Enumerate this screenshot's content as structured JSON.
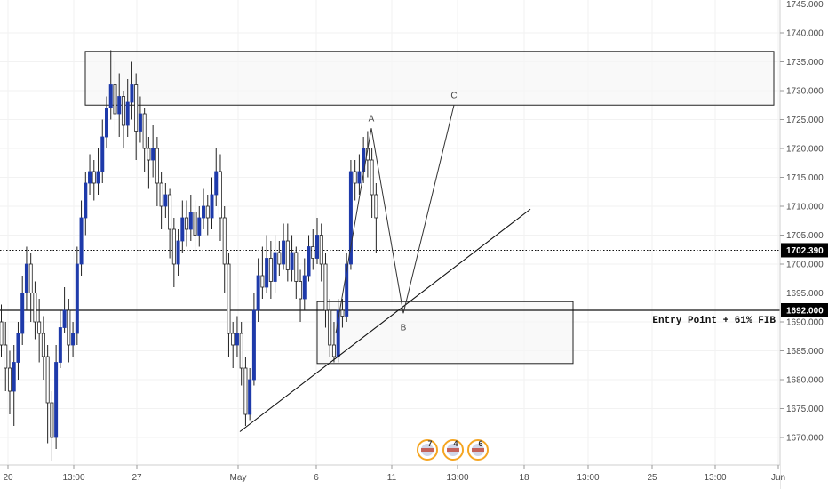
{
  "chart_data": {
    "type": "candlestick",
    "title": "",
    "colors": {
      "up": "#1e3aaa",
      "down": "#ffffff",
      "wick": "#222222",
      "grid": "#f2f2f2",
      "line": "#111111",
      "zone_fill": "#f6f6f6",
      "zone_stroke": "#222222",
      "tag_dark": "#000000",
      "badge_ring": "#f5a623"
    },
    "y_axis": {
      "range": [
        1665,
        1746
      ],
      "ticks": [
        "1670.000",
        "1675.000",
        "1680.000",
        "1685.000",
        "1690.000",
        "1695.000",
        "1700.000",
        "1705.000",
        "1710.000",
        "1715.000",
        "1720.000",
        "1725.000",
        "1730.000",
        "1735.000",
        "1740.000",
        "1745.000"
      ]
    },
    "x_axis": {
      "ticks": [
        {
          "label": "20",
          "pos": 9
        },
        {
          "label": "13:00",
          "pos": 83
        },
        {
          "label": "27",
          "pos": 154
        },
        {
          "label": "May",
          "pos": 268
        },
        {
          "label": "6",
          "pos": 356
        },
        {
          "label": "11",
          "pos": 441
        },
        {
          "label": "13:00",
          "pos": 515
        },
        {
          "label": "18",
          "pos": 590
        },
        {
          "label": "13:00",
          "pos": 662
        },
        {
          "label": "25",
          "pos": 734
        },
        {
          "label": "13:00",
          "pos": 805
        },
        {
          "label": "Jun",
          "pos": 876
        }
      ]
    },
    "candles": [
      [
        1690,
        1686,
        1693,
        1684
      ],
      [
        1686,
        1682,
        1690,
        1678
      ],
      [
        1682,
        1678,
        1685,
        1674
      ],
      [
        1678,
        1683,
        1686,
        1672
      ],
      [
        1683,
        1688,
        1690,
        1680
      ],
      [
        1688,
        1695,
        1698,
        1686
      ],
      [
        1695,
        1700,
        1703,
        1692
      ],
      [
        1700,
        1695,
        1702,
        1690
      ],
      [
        1695,
        1690,
        1697,
        1687
      ],
      [
        1690,
        1688,
        1694,
        1683
      ],
      [
        1688,
        1684,
        1691,
        1680
      ],
      [
        1684,
        1676,
        1686,
        1669
      ],
      [
        1676,
        1670,
        1678,
        1666
      ],
      [
        1670,
        1683,
        1686,
        1668
      ],
      [
        1683,
        1689,
        1692,
        1682
      ],
      [
        1689,
        1692,
        1696,
        1688
      ],
      [
        1692,
        1686,
        1694,
        1683
      ],
      [
        1686,
        1688,
        1690,
        1684
      ],
      [
        1688,
        1700,
        1703,
        1686
      ],
      [
        1700,
        1708,
        1711,
        1698
      ],
      [
        1708,
        1714,
        1716,
        1705
      ],
      [
        1714,
        1716,
        1719,
        1712
      ],
      [
        1716,
        1714,
        1718,
        1711
      ],
      [
        1714,
        1716,
        1720,
        1712
      ],
      [
        1716,
        1722,
        1725,
        1714
      ],
      [
        1722,
        1727,
        1729,
        1720
      ],
      [
        1727,
        1731,
        1737,
        1725
      ],
      [
        1731,
        1726,
        1735,
        1723
      ],
      [
        1726,
        1729,
        1733,
        1722
      ],
      [
        1729,
        1724,
        1730,
        1720
      ],
      [
        1724,
        1728,
        1732,
        1722
      ],
      [
        1728,
        1731,
        1735,
        1725
      ],
      [
        1731,
        1723,
        1733,
        1718
      ],
      [
        1723,
        1726,
        1729,
        1721
      ],
      [
        1726,
        1720,
        1727,
        1716
      ],
      [
        1720,
        1718,
        1722,
        1713
      ],
      [
        1718,
        1720,
        1724,
        1715
      ],
      [
        1720,
        1714,
        1722,
        1710
      ],
      [
        1714,
        1710,
        1716,
        1706
      ],
      [
        1710,
        1712,
        1714,
        1708
      ],
      [
        1712,
        1706,
        1713,
        1701
      ],
      [
        1706,
        1700,
        1708,
        1696
      ],
      [
        1700,
        1704,
        1706,
        1698
      ],
      [
        1704,
        1708,
        1711,
        1702
      ],
      [
        1708,
        1706,
        1711,
        1703
      ],
      [
        1706,
        1709,
        1712,
        1704
      ],
      [
        1709,
        1705,
        1711,
        1702
      ],
      [
        1705,
        1708,
        1710,
        1703
      ],
      [
        1708,
        1710,
        1713,
        1706
      ],
      [
        1710,
        1708,
        1712,
        1705
      ],
      [
        1708,
        1712,
        1715,
        1706
      ],
      [
        1712,
        1716,
        1720,
        1710
      ],
      [
        1716,
        1708,
        1719,
        1704
      ],
      [
        1708,
        1700,
        1710,
        1695
      ],
      [
        1700,
        1688,
        1702,
        1684
      ],
      [
        1688,
        1686,
        1690,
        1682
      ],
      [
        1686,
        1688,
        1691,
        1684
      ],
      [
        1688,
        1682,
        1690,
        1679
      ],
      [
        1682,
        1674,
        1684,
        1672
      ],
      [
        1674,
        1680,
        1682,
        1673
      ],
      [
        1680,
        1692,
        1695,
        1679
      ],
      [
        1692,
        1698,
        1701,
        1690
      ],
      [
        1698,
        1696,
        1703,
        1694
      ],
      [
        1696,
        1701,
        1705,
        1695
      ],
      [
        1701,
        1697,
        1704,
        1694
      ],
      [
        1697,
        1702,
        1705,
        1695
      ],
      [
        1702,
        1700,
        1704,
        1698
      ],
      [
        1700,
        1704,
        1707,
        1699
      ],
      [
        1704,
        1699,
        1707,
        1697
      ],
      [
        1699,
        1702,
        1705,
        1697
      ],
      [
        1702,
        1697,
        1703,
        1694
      ],
      [
        1697,
        1694,
        1699,
        1690
      ],
      [
        1694,
        1698,
        1701,
        1692
      ],
      [
        1698,
        1703,
        1705,
        1697
      ],
      [
        1703,
        1701,
        1706,
        1699
      ],
      [
        1701,
        1705,
        1708,
        1700
      ],
      [
        1705,
        1700,
        1707,
        1697
      ],
      [
        1700,
        1692,
        1702,
        1689
      ],
      [
        1692,
        1686,
        1694,
        1684
      ],
      [
        1686,
        1684,
        1690,
        1683
      ],
      [
        1684,
        1692,
        1694,
        1683
      ],
      [
        1692,
        1691,
        1694,
        1689
      ],
      [
        1691,
        1700,
        1702,
        1690
      ],
      [
        1700,
        1716,
        1718,
        1699
      ],
      [
        1716,
        1714,
        1718,
        1711
      ],
      [
        1714,
        1716,
        1719,
        1712
      ],
      [
        1716,
        1720,
        1722,
        1714
      ],
      [
        1720,
        1718,
        1723,
        1715
      ],
      [
        1718,
        1712,
        1720,
        1708
      ],
      [
        1712,
        1708,
        1714,
        1702
      ]
    ],
    "zones": [
      {
        "name": "supply-zone",
        "x1": 96,
        "x2": 871,
        "y_top": 1736.8,
        "y_bottom": 1727.5
      },
      {
        "name": "entry-zone",
        "x1": 357,
        "x2": 645,
        "y_top": 1693.5,
        "y_bottom": 1682.8
      }
    ],
    "trendline": {
      "x1": 270,
      "y1": 1671,
      "x2": 597,
      "y2": 1709.5
    },
    "pattern": {
      "points": [
        {
          "label": "",
          "x": 378,
          "y": 1688
        },
        {
          "label": "A",
          "x": 418,
          "y": 1723.5
        },
        {
          "label": "B",
          "x": 454,
          "y": 1691.5
        },
        {
          "label": "C",
          "x": 511,
          "y": 1727.5
        }
      ]
    },
    "horizontal_lines": [
      {
        "name": "entry-line",
        "y": 1692.0,
        "style": "solid"
      },
      {
        "name": "current-price-line",
        "y": 1702.39,
        "style": "dotted"
      }
    ],
    "price_tags": [
      {
        "name": "current-price-tag",
        "label": "1702.390",
        "y": 1702.39
      },
      {
        "name": "entry-price-tag",
        "label": "1692.000",
        "y": 1692.0
      }
    ],
    "annotations": [
      {
        "name": "entry-annotation",
        "text": "Entry Point + 61% FIB",
        "y": 1690.5
      }
    ],
    "event_badges": [
      {
        "count": "7",
        "x": 481
      },
      {
        "count": "4",
        "x": 510
      },
      {
        "count": "6",
        "x": 538
      }
    ]
  }
}
